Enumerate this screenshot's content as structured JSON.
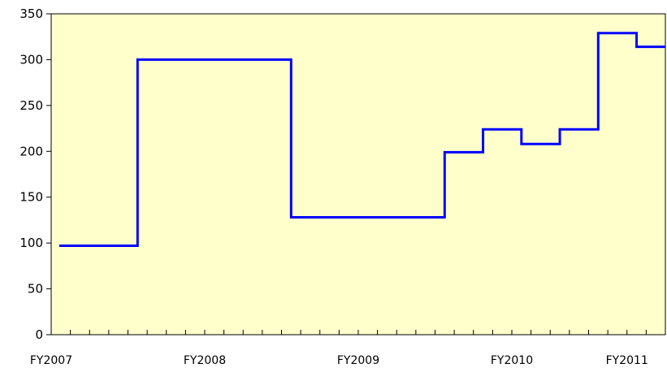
{
  "chart_data": {
    "type": "line",
    "step": true,
    "title": "",
    "xlabel": "",
    "ylabel": "",
    "ylim": [
      0,
      350
    ],
    "yticks": [
      0,
      50,
      100,
      150,
      200,
      250,
      300,
      350
    ],
    "x_tick_count": 32,
    "x_labels": [
      {
        "text": "FY2007",
        "tick": 0
      },
      {
        "text": "FY2008",
        "tick": 8
      },
      {
        "text": "FY2009",
        "tick": 16
      },
      {
        "text": "FY2010",
        "tick": 24
      },
      {
        "text": "FY2011",
        "tick": 30
      }
    ],
    "series": [
      {
        "color": "#0000ff",
        "points": [
          {
            "tick": 0.5,
            "value": 97
          },
          {
            "tick": 4.5,
            "value": 300
          },
          {
            "tick": 12.5,
            "value": 128
          },
          {
            "tick": 20.5,
            "value": 199
          },
          {
            "tick": 22.5,
            "value": 224
          },
          {
            "tick": 24.5,
            "value": 208
          },
          {
            "tick": 26.5,
            "value": 224
          },
          {
            "tick": 28.5,
            "value": 329
          },
          {
            "tick": 30.5,
            "value": 314
          },
          {
            "tick": 32,
            "value": 314
          }
        ]
      }
    ],
    "plot_background": "#ffffcc",
    "grid": false,
    "legend": "none"
  }
}
